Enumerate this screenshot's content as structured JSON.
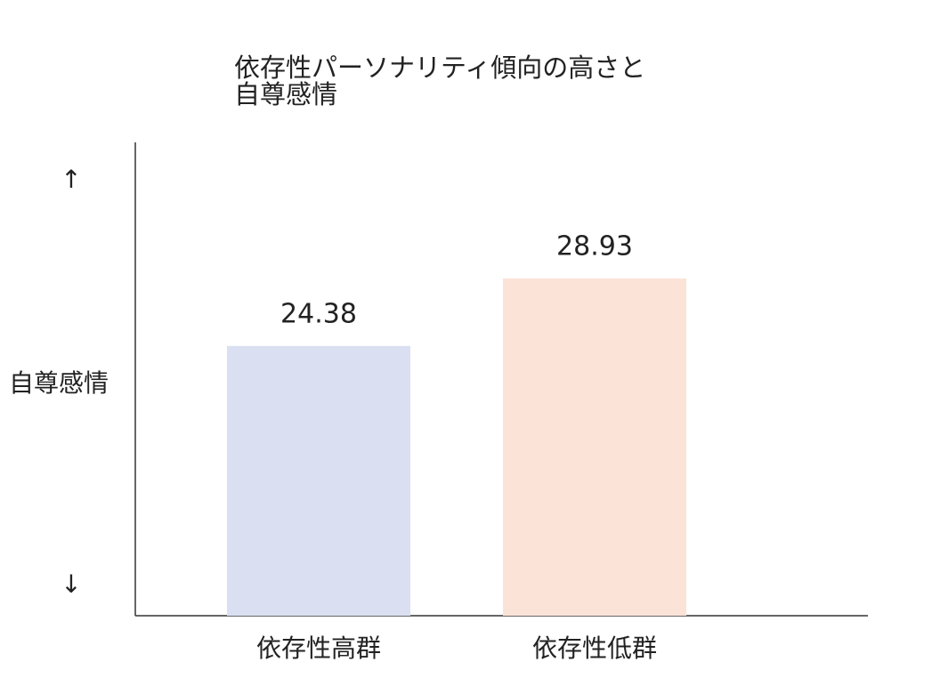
{
  "chart_data": {
    "type": "bar",
    "title": [
      "依存性パーソナリティ傾向の高さと",
      "自尊感情"
    ],
    "y_label": "自尊感情",
    "y_arrows": [
      "↑",
      "↓"
    ],
    "categories": [
      "依存性高群",
      "依存性低群"
    ],
    "values": [
      24.38,
      28.93
    ],
    "colors": [
      "#dae0f1",
      "#fce3d8"
    ],
    "ylim": [
      6.2,
      38.1
    ]
  }
}
